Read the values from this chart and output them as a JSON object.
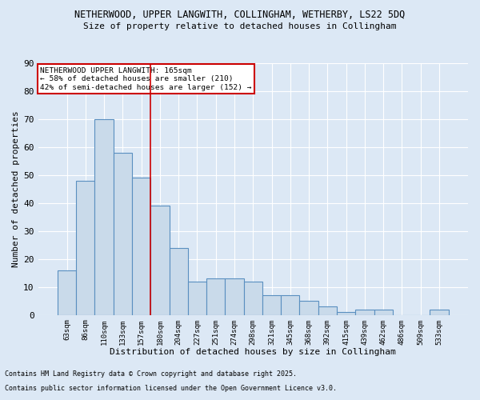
{
  "title_line1": "NETHERWOOD, UPPER LANGWITH, COLLINGHAM, WETHERBY, LS22 5DQ",
  "title_line2": "Size of property relative to detached houses in Collingham",
  "xlabel": "Distribution of detached houses by size in Collingham",
  "ylabel": "Number of detached properties",
  "bar_labels": [
    "63sqm",
    "86sqm",
    "110sqm",
    "133sqm",
    "157sqm",
    "180sqm",
    "204sqm",
    "227sqm",
    "251sqm",
    "274sqm",
    "298sqm",
    "321sqm",
    "345sqm",
    "368sqm",
    "392sqm",
    "415sqm",
    "439sqm",
    "462sqm",
    "486sqm",
    "509sqm",
    "533sqm"
  ],
  "bar_values": [
    16,
    48,
    70,
    58,
    49,
    39,
    24,
    12,
    13,
    13,
    12,
    7,
    7,
    5,
    3,
    1,
    2,
    2,
    0,
    0,
    2
  ],
  "bar_color": "#c9daea",
  "bar_edge_color": "#5a8fc0",
  "background_color": "#dce8f5",
  "grid_color": "#ffffff",
  "vline_x": 4.5,
  "vline_color": "#cc0000",
  "annotation_line1": "NETHERWOOD UPPER LANGWITH: 165sqm",
  "annotation_line2": "← 58% of detached houses are smaller (210)",
  "annotation_line3": "42% of semi-detached houses are larger (152) →",
  "annotation_box_color": "#ffffff",
  "annotation_box_edge": "#cc0000",
  "ylim": [
    0,
    90
  ],
  "yticks": [
    0,
    10,
    20,
    30,
    40,
    50,
    60,
    70,
    80,
    90
  ],
  "footer_line1": "Contains HM Land Registry data © Crown copyright and database right 2025.",
  "footer_line2": "Contains public sector information licensed under the Open Government Licence v3.0."
}
